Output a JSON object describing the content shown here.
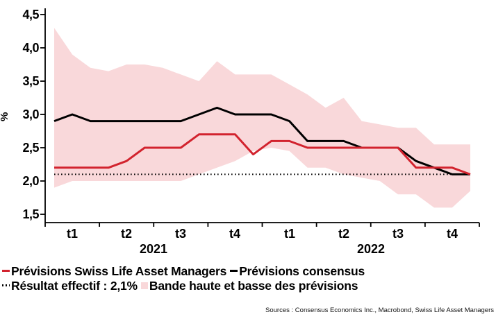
{
  "chart": {
    "y_axis_label": "%",
    "y_ticks": [
      "4,5",
      "4,0",
      "3,5",
      "3,0",
      "2,5",
      "2,0",
      "1,5"
    ],
    "quarter_labels": [
      "t1",
      "t2",
      "t3",
      "t4",
      "t1",
      "t2",
      "t3",
      "t4"
    ],
    "year_labels": [
      "2021",
      "2022"
    ]
  },
  "legend": {
    "series1": "Prévisions Swiss Life Asset Managers",
    "series2": "Prévisions consensus",
    "actual": "Résultat effectif : 2,1%",
    "band": "Bande haute et basse des prévisions"
  },
  "sources": "Sources : Consensus Economics Inc., Macrobond, Swiss Life Asset Managers",
  "colors": {
    "red_line": "#d2232e",
    "black_line": "#000000",
    "band_fill": "#f9d8da",
    "axis": "#000000"
  },
  "chart_data": {
    "type": "line",
    "title": "",
    "xlabel": "",
    "ylabel": "%",
    "x_axis": {
      "quarter_ticks": [
        "t1",
        "t2",
        "t3",
        "t4",
        "t1",
        "t2",
        "t3",
        "t4"
      ],
      "year_labels": [
        "2021",
        "2022"
      ],
      "frequency": "monthly",
      "n_points": 24
    },
    "y_axis": {
      "ticks": [
        4.5,
        4.0,
        3.5,
        3.0,
        2.5,
        2.0,
        1.5
      ],
      "range": [
        1.5,
        4.5
      ],
      "decimal_separator": ","
    },
    "grid": false,
    "legend_position": "bottom-left",
    "series": [
      {
        "name": "Prévisions Swiss Life Asset Managers",
        "color": "#d2232e",
        "style": "solid",
        "values": [
          2.2,
          2.2,
          2.2,
          2.2,
          2.3,
          2.5,
          2.5,
          2.5,
          2.7,
          2.7,
          2.7,
          2.4,
          2.6,
          2.6,
          2.5,
          2.5,
          2.5,
          2.5,
          2.5,
          2.5,
          2.2,
          2.2,
          2.2,
          2.1
        ]
      },
      {
        "name": "Prévisions consensus",
        "color": "#000000",
        "style": "solid",
        "values": [
          2.9,
          3.0,
          2.9,
          2.9,
          2.9,
          2.9,
          2.9,
          2.9,
          3.0,
          3.1,
          3.0,
          3.0,
          3.0,
          2.9,
          2.6,
          2.6,
          2.6,
          2.5,
          2.5,
          2.5,
          2.3,
          2.2,
          2.1,
          2.1
        ]
      },
      {
        "name": "Résultat effectif",
        "color": "#000000",
        "style": "dotted",
        "constant_value": 2.1
      },
      {
        "name": "Bande haute et basse des prévisions",
        "type": "band",
        "fill": "#f9d8da",
        "high": [
          4.3,
          3.9,
          3.7,
          3.65,
          3.75,
          3.75,
          3.7,
          3.6,
          3.5,
          3.8,
          3.6,
          3.6,
          3.6,
          3.45,
          3.3,
          3.1,
          3.25,
          2.9,
          2.85,
          2.8,
          2.8,
          2.55,
          2.55,
          2.55
        ],
        "low": [
          1.9,
          2.0,
          2.0,
          2.0,
          2.0,
          2.0,
          2.0,
          2.0,
          2.1,
          2.2,
          2.3,
          2.45,
          2.5,
          2.45,
          2.2,
          2.2,
          2.1,
          2.05,
          2.0,
          1.8,
          1.8,
          1.6,
          1.6,
          1.85
        ]
      }
    ]
  }
}
